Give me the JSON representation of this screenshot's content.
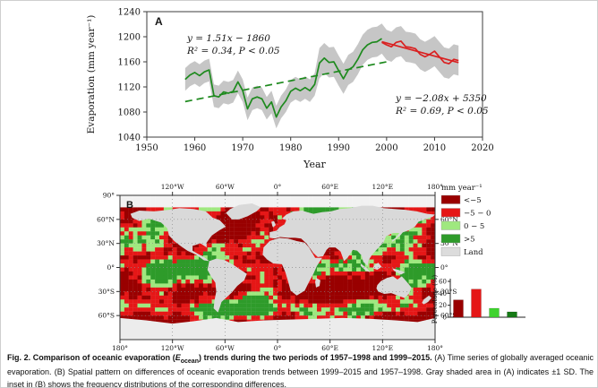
{
  "caption": {
    "fig_label": "Fig. 2.",
    "title_pre": "Comparison of oceanic evaporation (",
    "e_symbol": "E",
    "e_sub": "ocean",
    "title_post": ") trends during the two periods of 1957–1998 and 1999–2015.",
    "body": "(A) Time series of globally averaged oceanic evaporation. (B) Spatial pattern on differences of oceanic evaporation trends between 1999–2015 and 1957–1998. Gray shaded area in (A) indicates ±1 SD. The inset in (B) shows the frequency distributions of the corresponding differences."
  },
  "chart_data": [
    {
      "id": "A",
      "panel_label": "A",
      "type": "line",
      "xlabel": "Year",
      "ylabel": "Evaporation (mm year⁻¹)",
      "xlim": [
        1950,
        2020
      ],
      "ylim": [
        1040,
        1240
      ],
      "xticks": [
        1950,
        1960,
        1970,
        1980,
        1990,
        2000,
        2010,
        2020
      ],
      "yticks": [
        1040,
        1080,
        1120,
        1160,
        1200,
        1240
      ],
      "band": {
        "label": "±1 SD",
        "color": "#c6c6c6",
        "sd_early": 18,
        "sd_late": 24,
        "sd_split_year": 1986
      },
      "series": [
        {
          "name": "evaporation 1958–1999",
          "color": "#1e8a1e",
          "start_year": 1958,
          "values": [
            1132,
            1139,
            1143,
            1138,
            1144,
            1147,
            1106,
            1104,
            1112,
            1110,
            1113,
            1128,
            1114,
            1085,
            1101,
            1104,
            1101,
            1086,
            1096,
            1072,
            1088,
            1098,
            1113,
            1118,
            1114,
            1119,
            1114,
            1124,
            1158,
            1166,
            1159,
            1160,
            1146,
            1133,
            1147,
            1152,
            1164,
            1179,
            1187,
            1191,
            1192,
            1197
          ]
        },
        {
          "name": "evaporation 1999–2015",
          "color": "#d92121",
          "start_year": 1999,
          "values": [
            1191,
            1187,
            1184,
            1191,
            1193,
            1184,
            1183,
            1181,
            1172,
            1168,
            1172,
            1177,
            1168,
            1159,
            1157,
            1164,
            1162
          ]
        }
      ],
      "trends": [
        {
          "name": "trend 1958–1999",
          "color": "#1e8a1e",
          "dashed": true,
          "slope": 1.51,
          "intercept": -1860,
          "x_range": [
            1958,
            2000
          ],
          "eq_line1": "y = 1.51x − 1860",
          "eq_line2": "R² = 0.34, P < 0.05"
        },
        {
          "name": "trend 1999–2015",
          "color": "#d92121",
          "dashed": false,
          "slope": -2.08,
          "intercept": 5350,
          "x_range": [
            1999,
            2015
          ],
          "eq_line1": "y = −2.08x + 5350",
          "eq_line2": "R² = 0.69, P < 0.05"
        }
      ]
    },
    {
      "id": "B",
      "panel_label": "B",
      "type": "map",
      "legend_title": "mm year⁻¹",
      "legend": [
        {
          "label": "<−5",
          "color": "#990000"
        },
        {
          "label": "−5 − 0",
          "color": "#e51717"
        },
        {
          "label": "0 − 5",
          "color": "#9fe87f"
        },
        {
          "label": ">5",
          "color": "#2e9b2a"
        },
        {
          "label": "Land",
          "color": "#dcdcdc"
        }
      ],
      "top_ticks": [
        "120°W",
        "60°W",
        "0°",
        "60°E",
        "120°E",
        "180°"
      ],
      "bottom_ticks": [
        "180°",
        "120°W",
        "60°W",
        "0°",
        "60°E",
        "120°E",
        "180°"
      ],
      "left_ticks": [
        "90°",
        "60°N",
        "30°N",
        "0°",
        "30°S",
        "60°S"
      ],
      "right_ticks": [
        "60°N",
        "30°N",
        "0°",
        "30°S",
        "60°S"
      ]
    },
    {
      "id": "B-inset",
      "type": "bar",
      "ylabel": "Percentage (%)",
      "ylim": [
        0,
        60
      ],
      "yticks": [
        0,
        20,
        40,
        60
      ],
      "categories": [
        "<−5",
        "−5 − 0",
        "0 − 5",
        ">5"
      ],
      "values": [
        29,
        47,
        15,
        9
      ],
      "colors": [
        "#990000",
        "#e51717",
        "#3fd32f",
        "#157a15"
      ]
    }
  ]
}
